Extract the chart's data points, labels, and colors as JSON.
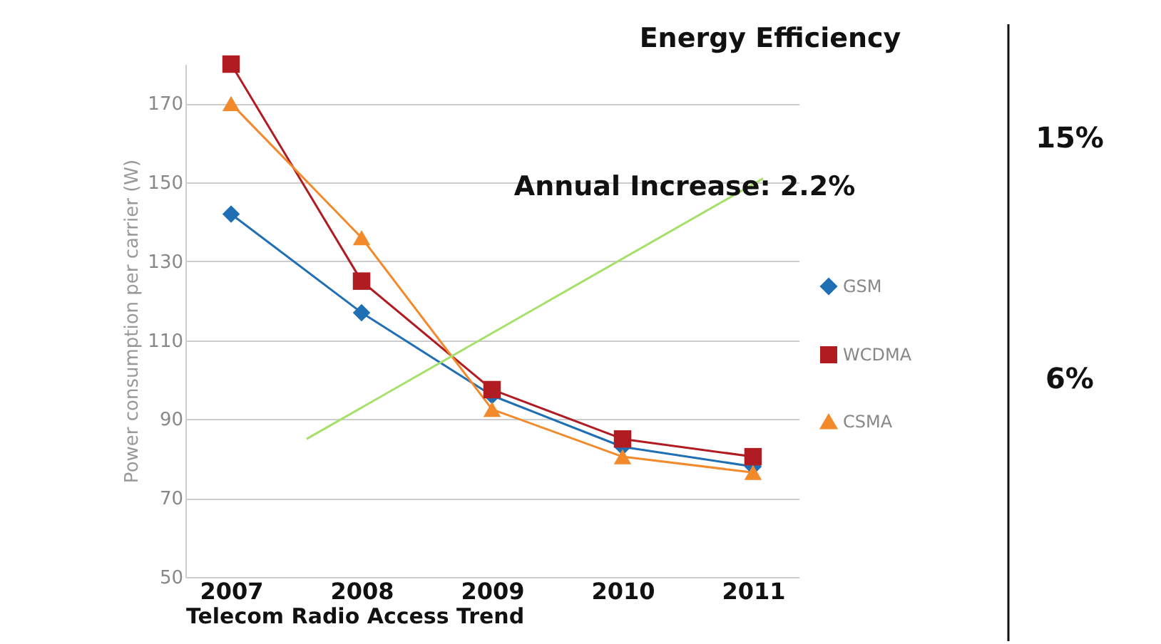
{
  "chart_data": {
    "type": "line",
    "categories": [
      "2007",
      "2008",
      "2009",
      "2010",
      "2011"
    ],
    "xlabel": "Telecom Radio Access Trend",
    "ylabel": "Power consumption per carrier (W)",
    "ylim": [
      50,
      180
    ],
    "yticks": [
      50,
      70,
      90,
      110,
      130,
      150,
      170
    ],
    "grid": "y",
    "legend": "right",
    "series": [
      {
        "name": "GSM",
        "color": "#1f6fb4",
        "marker": "diamond",
        "values": [
          142,
          117,
          96,
          83,
          78
        ]
      },
      {
        "name": "WCDMA",
        "color": "#b01c22",
        "marker": "square",
        "values": [
          180,
          125,
          97.5,
          85,
          80.5
        ]
      },
      {
        "name": "CSMA",
        "color": "#f28a2b",
        "marker": "triangle",
        "values": [
          170,
          136,
          92.5,
          80.5,
          76.5
        ]
      }
    ],
    "annotations": [
      "Energy Efficiency",
      "Annual Increase: 2.2%",
      "15%",
      "6%"
    ]
  }
}
